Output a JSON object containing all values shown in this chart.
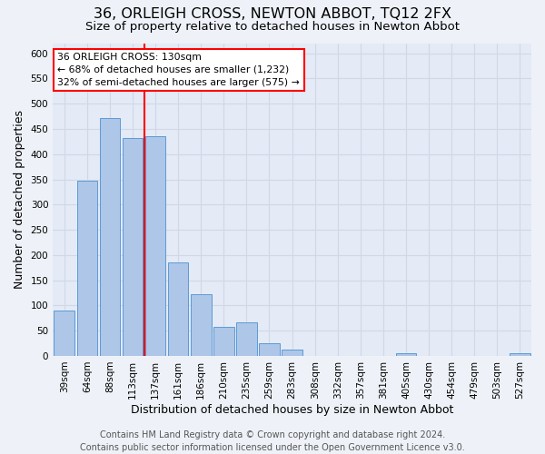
{
  "title": "36, ORLEIGH CROSS, NEWTON ABBOT, TQ12 2FX",
  "subtitle": "Size of property relative to detached houses in Newton Abbot",
  "xlabel": "Distribution of detached houses by size in Newton Abbot",
  "ylabel": "Number of detached properties",
  "footer_line1": "Contains HM Land Registry data © Crown copyright and database right 2024.",
  "footer_line2": "Contains public sector information licensed under the Open Government Licence v3.0.",
  "bar_labels": [
    "39sqm",
    "64sqm",
    "88sqm",
    "113sqm",
    "137sqm",
    "161sqm",
    "186sqm",
    "210sqm",
    "235sqm",
    "259sqm",
    "283sqm",
    "308sqm",
    "332sqm",
    "357sqm",
    "381sqm",
    "405sqm",
    "430sqm",
    "454sqm",
    "479sqm",
    "503sqm",
    "527sqm"
  ],
  "bar_values": [
    90,
    348,
    472,
    432,
    435,
    186,
    123,
    57,
    67,
    25,
    13,
    0,
    0,
    0,
    0,
    5,
    0,
    0,
    0,
    0,
    5
  ],
  "bar_color": "#aec6e8",
  "bar_edge_color": "#5b9bd5",
  "ylim": [
    0,
    620
  ],
  "yticks": [
    0,
    50,
    100,
    150,
    200,
    250,
    300,
    350,
    400,
    450,
    500,
    550,
    600
  ],
  "red_line_index": 3.5,
  "annotation_title": "36 ORLEIGH CROSS: 130sqm",
  "annotation_line1": "← 68% of detached houses are smaller (1,232)",
  "annotation_line2": "32% of semi-detached houses are larger (575) →",
  "background_color": "#eef2f8",
  "plot_bg_color": "#e4eaf6",
  "grid_color": "#d0d8e8",
  "title_fontsize": 11.5,
  "subtitle_fontsize": 9.5,
  "axis_label_fontsize": 9,
  "tick_fontsize": 7.5,
  "footer_fontsize": 7
}
